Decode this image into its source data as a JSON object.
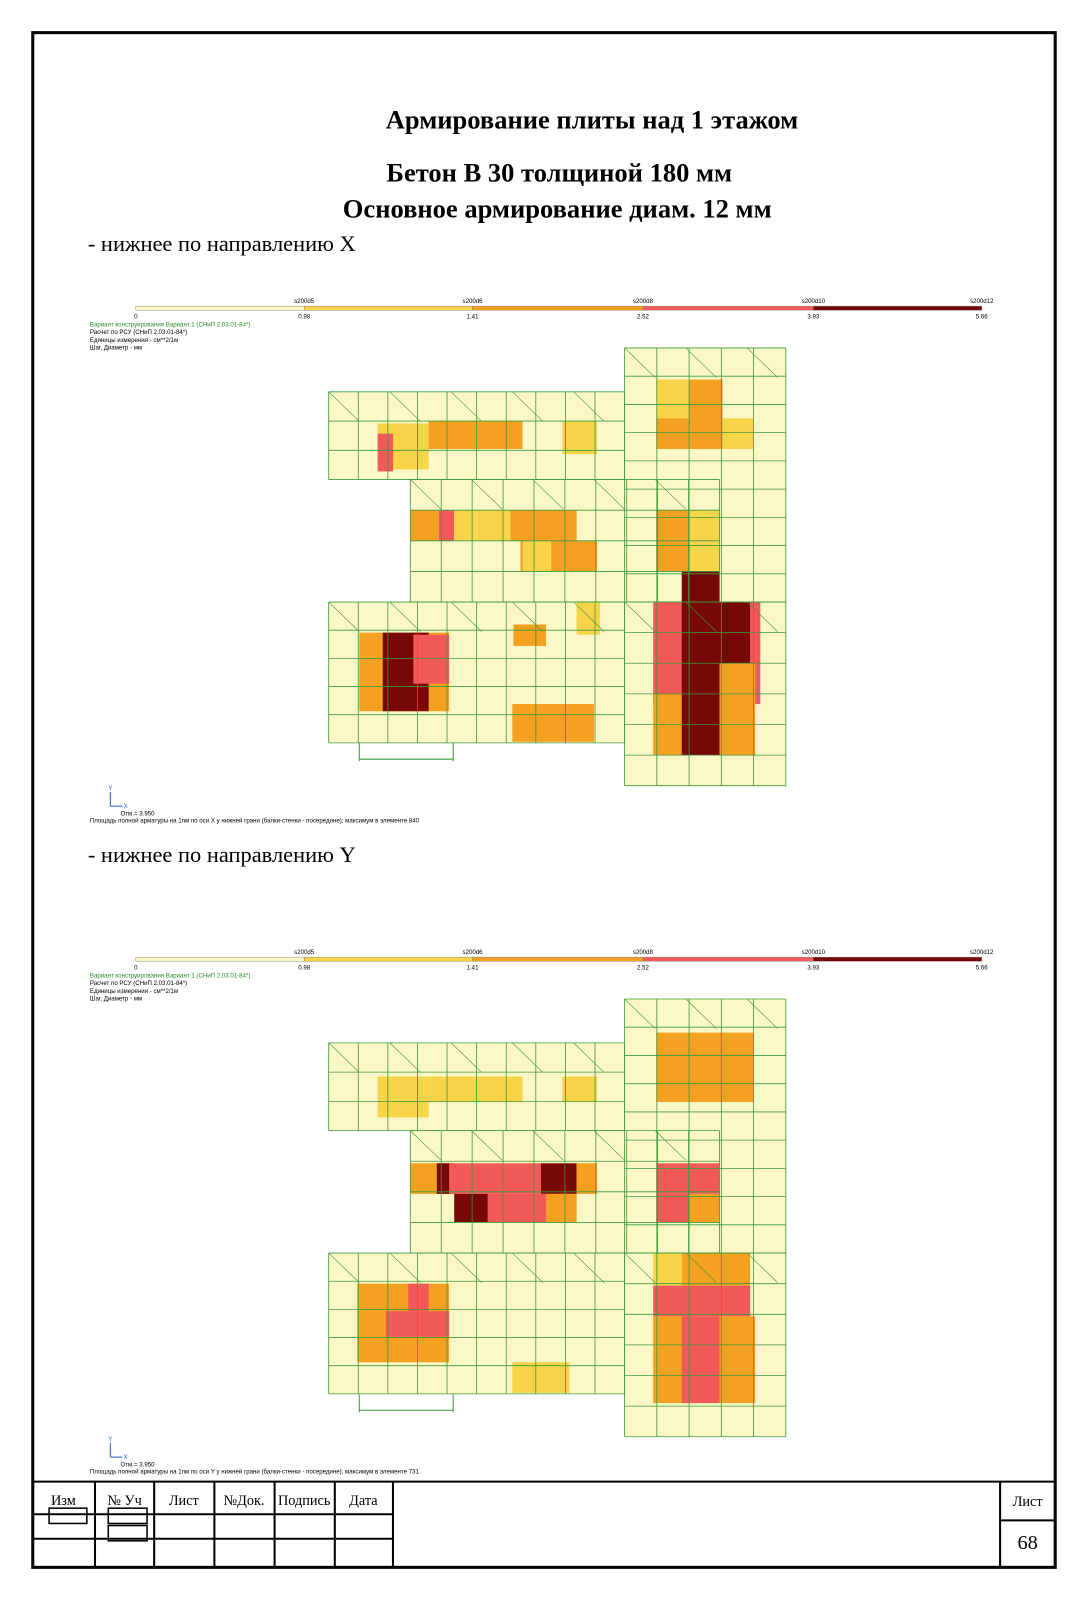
{
  "header": {
    "title": "Армирование плиты над 1 этажом",
    "subtitle_1": "Бетон В 30 толщиной 180 мм",
    "subtitle_2": "Основное армирование диам. 12 мм"
  },
  "plots": [
    {
      "heading": "- нижнее по направлению X",
      "legend": {
        "top_labels": [
          "s200d5",
          "s200d6",
          "s200d8",
          "s200d10",
          "s200d12"
        ],
        "bottom_labels": [
          "0",
          "0.98",
          "1.41",
          "2.52",
          "3.93",
          "5.66"
        ]
      },
      "info": [
        "Вариант конструирования Вариант 1 (СНиП 2.03.01-84*)",
        "Расчет по РСУ (СНиП 2.03.01-84*)",
        "Единицы измерения - см**2/1м",
        "Шаг, Диаметр - мм"
      ],
      "axis_y": "Y",
      "axis_x": "X",
      "elevation": "Отм.= 3.950",
      "caption": "Площадь полной арматуры на 1пм по оси X у нижней грани (балки-стенки - посередине); максимум в элементе 840"
    },
    {
      "heading": "- нижнее по направлению Y",
      "legend": {
        "top_labels": [
          "s200d5",
          "s200d6",
          "s200d8",
          "s200d10",
          "s200d12"
        ],
        "bottom_labels": [
          "0",
          "0.98",
          "1.41",
          "2.52",
          "3.93",
          "5.66"
        ]
      },
      "info": [
        "Вариант конструирования Вариант 1 (СНиП 2.03.01-84*)",
        "Расчет по РСУ (СНиП 2.03.01-84*)",
        "Единицы измерения - см**2/1м",
        "Шаг, Диаметр - мм"
      ],
      "axis_y": "Y",
      "axis_x": "X",
      "elevation": "Отм.= 3.950",
      "caption": "Площадь полной арматуры на 1пм по оси Y у нижней грани (балки-стенки - посередине); максимум в элементе 731"
    }
  ],
  "title_block": {
    "columns": [
      "Изм",
      "№ Уч",
      "Лист",
      "№Док.",
      "Подпись",
      "Дата"
    ],
    "sheet_label": "Лист",
    "sheet_number": "68"
  }
}
